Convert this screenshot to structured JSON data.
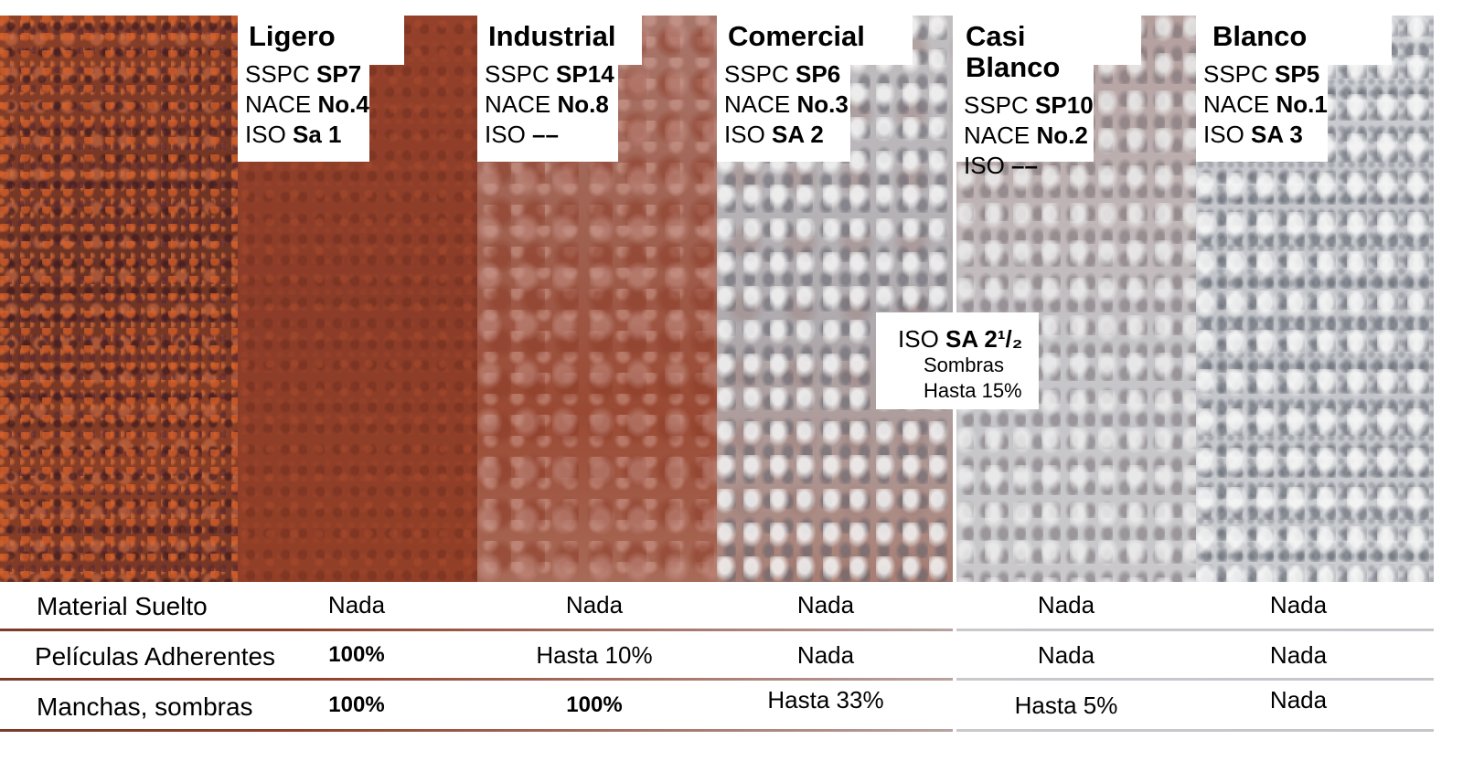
{
  "panels": [
    {
      "title": "Ligero",
      "sspc_label": "SSPC",
      "sspc_value": "SP7",
      "nace_label": "NACE",
      "nace_value": "No.4",
      "iso_label": "ISO",
      "iso_value": "Sa 1"
    },
    {
      "title": "Industrial",
      "sspc_label": "SSPC",
      "sspc_value": "SP14",
      "nace_label": "NACE",
      "nace_value": "No.8",
      "iso_label": "ISO",
      "iso_value": "––"
    },
    {
      "title": "Comercial",
      "sspc_label": "SSPC",
      "sspc_value": "SP6",
      "nace_label": "NACE",
      "nace_value": "No.3",
      "iso_label": "ISO",
      "iso_value": "SA 2"
    },
    {
      "title": "Casi Blanco",
      "sspc_label": "SSPC",
      "sspc_value": "SP10",
      "nace_label": "NACE",
      "nace_value": "No.2",
      "iso_label": "ISO",
      "iso_value": "––"
    },
    {
      "title": "Blanco",
      "sspc_label": "SSPC",
      "sspc_value": "SP5",
      "nace_label": "NACE",
      "nace_value": "No.1",
      "iso_label": "ISO",
      "iso_value": "SA 3"
    }
  ],
  "callout": {
    "iso_label": "ISO",
    "iso_value": "SA 2¹/₂",
    "line2": "Sombras",
    "line3": "Hasta 15%"
  },
  "rows": [
    {
      "label": "Material Suelto",
      "values": [
        "Nada",
        "Nada",
        "Nada",
        "Nada",
        "Nada"
      ]
    },
    {
      "label": "Películas Adherentes",
      "values": [
        "100%",
        "Hasta 10%",
        "Nada",
        "Nada",
        "Nada"
      ]
    },
    {
      "label": "Manchas, sombras",
      "values": [
        "100%",
        "100%",
        "Hasta 33%",
        "Hasta 5%",
        "Nada"
      ]
    }
  ],
  "colors": {
    "rust": "#8f3e27",
    "industrial": "#a2695a",
    "commercial": "#b4b2b4",
    "white_metal": "#c4c6cb"
  }
}
